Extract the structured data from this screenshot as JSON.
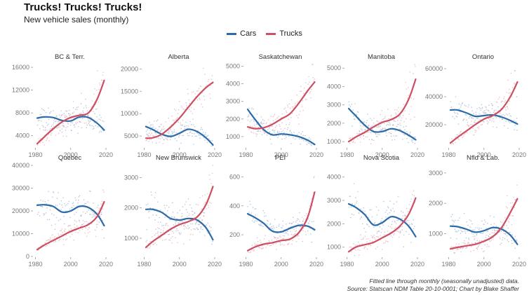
{
  "title": "Trucks! Trucks! Trucks!",
  "subtitle": "New vehicle sales (monthly)",
  "caption": {
    "line1": "Fitted line through monthly (seasonally unadjusted) data.",
    "line2": "Source: Statscan NDM Table 20-10-0001; Chart by Blake Shaffer"
  },
  "colors": {
    "cars": "#2c6aa8",
    "trucks": "#cc4f63",
    "axis_text": "#777777"
  },
  "chart_data": {
    "type": "line",
    "legend": {
      "position": "top-center",
      "entries": [
        "Cars",
        "Trucks"
      ]
    },
    "grid": false,
    "x_ticks": [
      1980,
      2000,
      2020
    ],
    "xlim": [
      1979,
      2020
    ],
    "panels": [
      {
        "name": "BC & Terr.",
        "ylim": [
          2000,
          16500
        ],
        "y_ticks": [
          4000,
          8000,
          12000,
          16000
        ],
        "y_tick_labels": [
          "4000",
          "8000",
          "12000",
          "16000"
        ],
        "series": [
          {
            "name": "Cars",
            "x": [
              1981,
              1985,
              1990,
              1995,
              2000,
              2005,
              2010,
              2015,
              2019
            ],
            "y": [
              7100,
              7300,
              7200,
              6700,
              6600,
              7300,
              7200,
              6200,
              5000
            ]
          },
          {
            "name": "Trucks",
            "x": [
              1981,
              1985,
              1990,
              1995,
              2000,
              2005,
              2010,
              2015,
              2019
            ],
            "y": [
              2600,
              3800,
              5200,
              6400,
              7200,
              7600,
              8000,
              10400,
              13700
            ]
          }
        ]
      },
      {
        "name": "Alberta",
        "ylim": [
          2500,
          21000
        ],
        "y_ticks": [
          5000,
          10000,
          15000,
          20000
        ],
        "y_tick_labels": [
          "5000",
          "10000",
          "15000",
          "20000"
        ],
        "series": [
          {
            "name": "Cars",
            "x": [
              1981,
              1985,
              1990,
              1995,
              2000,
              2005,
              2010,
              2015,
              2019
            ],
            "y": [
              7100,
              6400,
              5400,
              4900,
              5600,
              6500,
              6000,
              4600,
              3000
            ]
          },
          {
            "name": "Trucks",
            "x": [
              1981,
              1985,
              1990,
              1995,
              2000,
              2005,
              2010,
              2015,
              2019
            ],
            "y": [
              4500,
              4600,
              5400,
              7000,
              9000,
              11400,
              13800,
              15800,
              17000
            ]
          }
        ]
      },
      {
        "name": "Saskatchewan",
        "ylim": [
          400,
          5100
        ],
        "y_ticks": [
          1000,
          2000,
          3000,
          4000,
          5000
        ],
        "y_tick_labels": [
          "1000",
          "2000",
          "3000",
          "4000",
          "5000"
        ],
        "series": [
          {
            "name": "Cars",
            "x": [
              1981,
              1985,
              1990,
              1995,
              2000,
              2005,
              2010,
              2015,
              2019
            ],
            "y": [
              2550,
              2000,
              1400,
              1100,
              1150,
              1100,
              1000,
              800,
              550
            ]
          },
          {
            "name": "Trucks",
            "x": [
              1981,
              1985,
              1990,
              1995,
              2000,
              2005,
              2010,
              2015,
              2019
            ],
            "y": [
              1550,
              1450,
              1500,
              1700,
              2000,
              2300,
              2900,
              3600,
              4100
            ]
          }
        ]
      },
      {
        "name": "Manitoba",
        "ylim": [
          700,
          5200
        ],
        "y_ticks": [
          1000,
          2000,
          3000,
          4000,
          5000
        ],
        "y_tick_labels": [
          "1000",
          "2000",
          "3000",
          "4000",
          "5000"
        ],
        "series": [
          {
            "name": "Cars",
            "x": [
              1981,
              1985,
              1990,
              1995,
              2000,
              2005,
              2010,
              2015,
              2019
            ],
            "y": [
              2800,
              2400,
              1900,
              1550,
              1550,
              1700,
              1600,
              1350,
              1100
            ]
          },
          {
            "name": "Trucks",
            "x": [
              1981,
              1985,
              1990,
              1995,
              2000,
              2005,
              2010,
              2015,
              2019
            ],
            "y": [
              1000,
              1250,
              1500,
              1800,
              2050,
              2200,
              2500,
              3300,
              4400
            ]
          }
        ]
      },
      {
        "name": "Ontario",
        "ylim": [
          4000,
          63000
        ],
        "y_ticks": [
          20000,
          40000,
          60000
        ],
        "y_tick_labels": [
          "20000",
          "40000",
          "60000"
        ],
        "series": [
          {
            "name": "Cars",
            "x": [
              1981,
              1985,
              1990,
              1995,
              2000,
              2005,
              2010,
              2015,
              2019
            ],
            "y": [
              30500,
              30500,
              28500,
              26000,
              26500,
              27000,
              25500,
              23000,
              20500
            ]
          },
          {
            "name": "Trucks",
            "x": [
              1981,
              1985,
              1990,
              1995,
              2000,
              2005,
              2010,
              2015,
              2019
            ],
            "y": [
              7000,
              11000,
              15500,
              20000,
              24000,
              26500,
              31000,
              40000,
              50500
            ]
          }
        ]
      },
      {
        "name": "Quebec",
        "ylim": [
          0,
          40000
        ],
        "y_ticks": [
          0,
          10000,
          20000,
          30000,
          40000
        ],
        "y_tick_labels": [
          "0",
          "10000",
          "20000",
          "30000",
          "40000"
        ],
        "series": [
          {
            "name": "Cars",
            "x": [
              1981,
              1985,
              1990,
              1995,
              2000,
              2005,
              2010,
              2015,
              2019
            ],
            "y": [
              22500,
              22700,
              22000,
              19500,
              20000,
              22000,
              21500,
              18500,
              13500
            ]
          },
          {
            "name": "Trucks",
            "x": [
              1981,
              1985,
              1990,
              1995,
              2000,
              2005,
              2010,
              2015,
              2019
            ],
            "y": [
              3000,
              5000,
              7000,
              9000,
              11000,
              12500,
              14000,
              17500,
              24000
            ]
          }
        ]
      },
      {
        "name": "New Brunswick",
        "ylim": [
          400,
          3400
        ],
        "y_ticks": [
          1000,
          2000,
          3000
        ],
        "y_tick_labels": [
          "1000",
          "2000",
          "3000"
        ],
        "series": [
          {
            "name": "Cars",
            "x": [
              1981,
              1985,
              1990,
              1995,
              2000,
              2005,
              2010,
              2015,
              2019
            ],
            "y": [
              1950,
              1950,
              1850,
              1650,
              1600,
              1650,
              1600,
              1350,
              950
            ]
          },
          {
            "name": "Trucks",
            "x": [
              1981,
              1985,
              1990,
              1995,
              2000,
              2005,
              2010,
              2015,
              2019
            ],
            "y": [
              700,
              900,
              1100,
              1300,
              1450,
              1550,
              1700,
              2100,
              2700
            ]
          }
        ]
      },
      {
        "name": "PEI",
        "ylim": [
          50,
          680
        ],
        "y_ticks": [
          200,
          400,
          600
        ],
        "y_tick_labels": [
          "200",
          "400",
          "600"
        ],
        "series": [
          {
            "name": "Cars",
            "x": [
              1981,
              1985,
              1990,
              1995,
              2000,
              2005,
              2010,
              2015,
              2019
            ],
            "y": [
              345,
              320,
              280,
              225,
              220,
              245,
              265,
              260,
              235
            ]
          },
          {
            "name": "Trucks",
            "x": [
              1981,
              1985,
              1990,
              1995,
              2000,
              2005,
              2010,
              2015,
              2019
            ],
            "y": [
              90,
              115,
              135,
              145,
              160,
              170,
              215,
              320,
              495
            ]
          }
        ]
      },
      {
        "name": "Nova Scotia",
        "ylim": [
          600,
          4500
        ],
        "y_ticks": [
          1000,
          2000,
          3000,
          4000
        ],
        "y_tick_labels": [
          "1000",
          "2000",
          "3000",
          "4000"
        ],
        "series": [
          {
            "name": "Cars",
            "x": [
              1981,
              1985,
              1990,
              1995,
              2000,
              2005,
              2010,
              2015,
              2019
            ],
            "y": [
              2850,
              2700,
              2400,
              1950,
              2050,
              2300,
              2200,
              1900,
              1450
            ]
          },
          {
            "name": "Trucks",
            "x": [
              1981,
              1985,
              1990,
              1995,
              2000,
              2005,
              2010,
              2015,
              2019
            ],
            "y": [
              800,
              1000,
              1100,
              1200,
              1400,
              1600,
              1900,
              2400,
              3100
            ]
          }
        ]
      },
      {
        "name": "Nfld & Lab.",
        "ylim": [
          250,
          3250
        ],
        "y_ticks": [
          1000,
          2000,
          3000
        ],
        "y_tick_labels": [
          "1000",
          "2000",
          "3000"
        ],
        "series": [
          {
            "name": "Cars",
            "x": [
              1981,
              1985,
              1990,
              1995,
              2000,
              2005,
              2010,
              2015,
              2019
            ],
            "y": [
              1250,
              1230,
              1150,
              1050,
              1100,
              1200,
              1150,
              950,
              650
            ]
          },
          {
            "name": "Trucks",
            "x": [
              1981,
              1985,
              1990,
              1995,
              2000,
              2005,
              2010,
              2015,
              2019
            ],
            "y": [
              500,
              550,
              600,
              650,
              750,
              900,
              1200,
              1700,
              2150
            ]
          }
        ]
      }
    ]
  }
}
